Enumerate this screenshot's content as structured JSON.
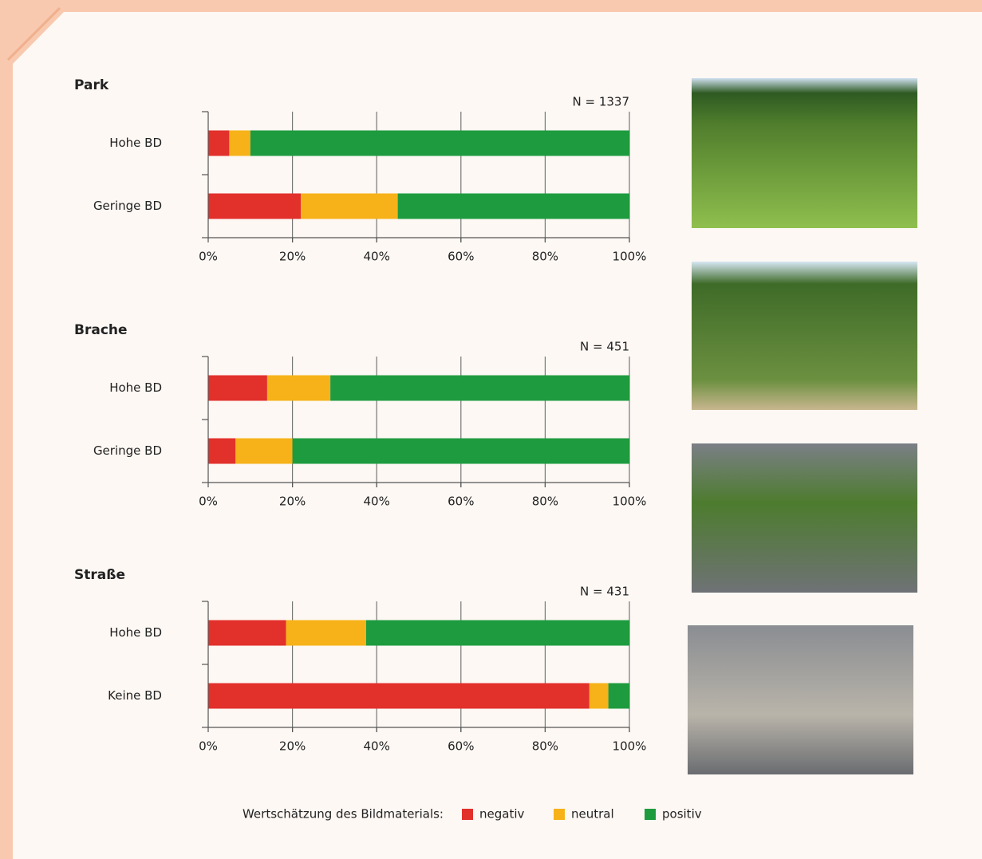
{
  "chart_data": [
    {
      "type": "bar",
      "orientation": "horizontal",
      "stacked": true,
      "title": "Park",
      "annotation": "N = 1337",
      "categories": [
        "Hohe BD",
        "Geringe BD"
      ],
      "series": [
        {
          "name": "negativ",
          "color": "#e2302b",
          "values": [
            5,
            22
          ]
        },
        {
          "name": "neutral",
          "color": "#f6b218",
          "values": [
            5,
            23
          ]
        },
        {
          "name": "positiv",
          "color": "#1e9b3f",
          "values": [
            90,
            55
          ]
        }
      ],
      "xlim": [
        0,
        100
      ],
      "xticks": [
        {
          "value": 0,
          "label": "0%"
        },
        {
          "value": 20,
          "label": "20%"
        },
        {
          "value": 40,
          "label": "40%"
        },
        {
          "value": 60,
          "label": "60%"
        },
        {
          "value": 80,
          "label": "80%"
        },
        {
          "value": 100,
          "label": "100%"
        }
      ],
      "grid": true
    },
    {
      "type": "bar",
      "orientation": "horizontal",
      "stacked": true,
      "title": "Brache",
      "annotation": "N = 451",
      "categories": [
        "Hohe BD",
        "Geringe BD"
      ],
      "series": [
        {
          "name": "negativ",
          "color": "#e2302b",
          "values": [
            14,
            6.5
          ]
        },
        {
          "name": "neutral",
          "color": "#f6b218",
          "values": [
            15,
            13.5
          ]
        },
        {
          "name": "positiv",
          "color": "#1e9b3f",
          "values": [
            71,
            80
          ]
        }
      ],
      "xlim": [
        0,
        100
      ],
      "xticks": [
        {
          "value": 0,
          "label": "0%"
        },
        {
          "value": 20,
          "label": "20%"
        },
        {
          "value": 40,
          "label": "40%"
        },
        {
          "value": 60,
          "label": "60%"
        },
        {
          "value": 80,
          "label": "80%"
        },
        {
          "value": 100,
          "label": "100%"
        }
      ],
      "grid": true
    },
    {
      "type": "bar",
      "orientation": "horizontal",
      "stacked": true,
      "title": "Straße",
      "annotation": "N = 431",
      "categories": [
        "Hohe BD",
        "Keine BD"
      ],
      "series": [
        {
          "name": "negativ",
          "color": "#e2302b",
          "values": [
            18.5,
            90.5
          ]
        },
        {
          "name": "neutral",
          "color": "#f6b218",
          "values": [
            19,
            4.5
          ]
        },
        {
          "name": "positiv",
          "color": "#1e9b3f",
          "values": [
            62.5,
            5
          ]
        }
      ],
      "xlim": [
        0,
        100
      ],
      "xticks": [
        {
          "value": 0,
          "label": "0%"
        },
        {
          "value": 20,
          "label": "20%"
        },
        {
          "value": 40,
          "label": "40%"
        },
        {
          "value": 60,
          "label": "60%"
        },
        {
          "value": 80,
          "label": "80%"
        },
        {
          "value": 100,
          "label": "100%"
        }
      ],
      "grid": true
    }
  ],
  "legend": {
    "title": "Wertschätzung des Bildmaterials:",
    "position": "bottom"
  }
}
